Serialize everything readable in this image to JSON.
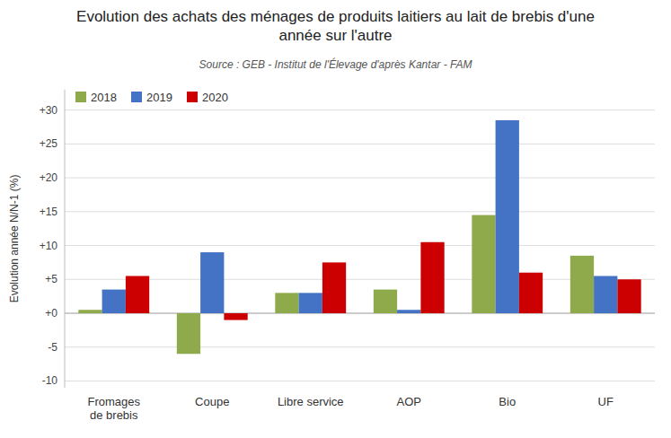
{
  "chart_data": {
    "type": "bar",
    "title": "Evolution des achats des ménages de produits laitiers au lait de brebis d'une\nannée sur l'autre",
    "subtitle": "Source : GEB - Institut de l'Élevage d'après Kantar - FAM",
    "categories": [
      "Fromages\nde brebis",
      "Coupe",
      "Libre service",
      "AOP",
      "Bio",
      "UF"
    ],
    "series": [
      {
        "name": "2018",
        "color": "#8faa4b",
        "values": [
          0.5,
          -6.0,
          3.0,
          3.5,
          14.5,
          8.5
        ]
      },
      {
        "name": "2019",
        "color": "#4472c4",
        "values": [
          3.5,
          9.0,
          3.0,
          0.5,
          28.5,
          5.5
        ]
      },
      {
        "name": "2020",
        "color": "#cc0000",
        "values": [
          5.5,
          -1.0,
          7.5,
          10.5,
          6.0,
          5.0
        ]
      }
    ],
    "y_label": "Evolution année N/N-1 (%)",
    "ylim": [
      -11,
      33
    ],
    "yticks": [
      -10,
      -5,
      {
        "value": 0,
        "label": "+0"
      },
      {
        "value": 5,
        "label": "+5"
      },
      {
        "value": 10,
        "label": "+10"
      },
      {
        "value": 15,
        "label": "+15"
      },
      {
        "value": 20,
        "label": "+20"
      },
      {
        "value": 25,
        "label": "+25"
      },
      {
        "value": 30,
        "label": "+30"
      }
    ],
    "grid": true,
    "legend": "upper left"
  }
}
